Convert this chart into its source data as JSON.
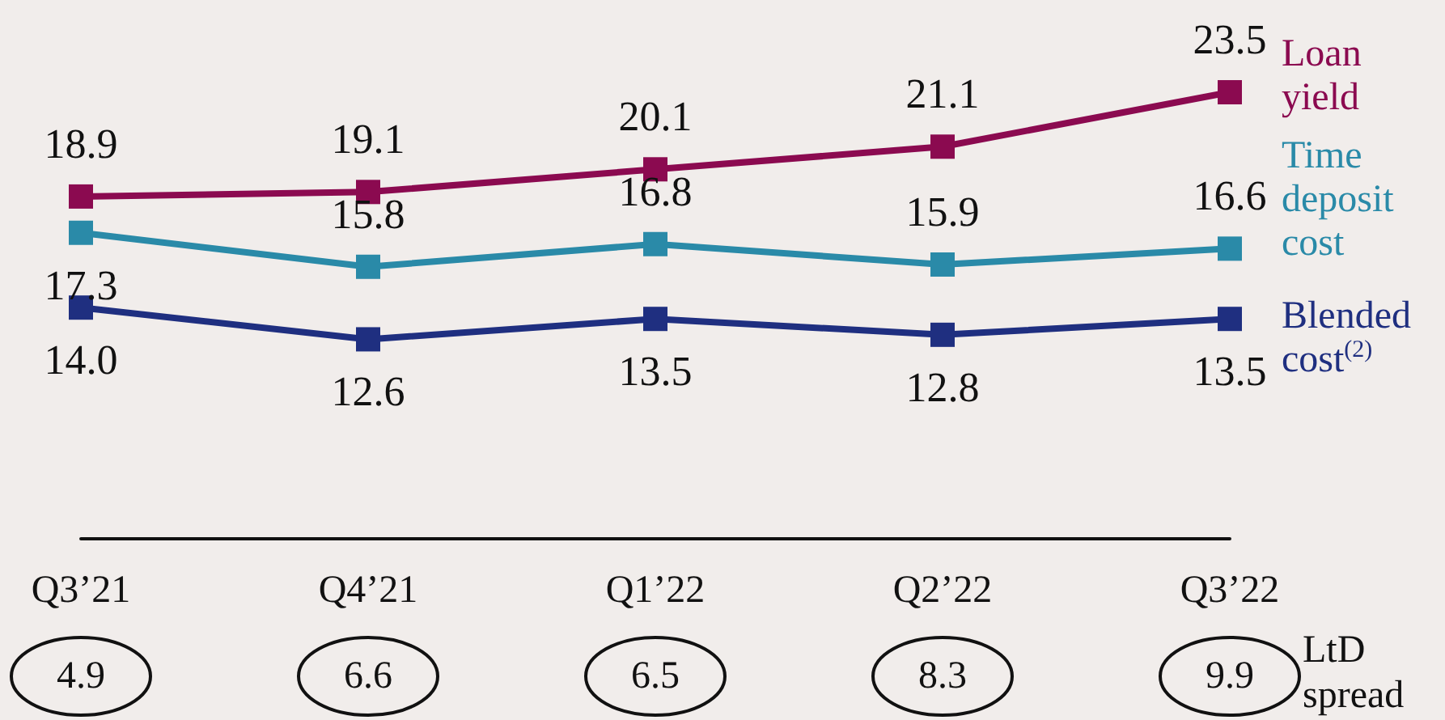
{
  "chart_data": {
    "type": "line",
    "categories": [
      "Q3’21",
      "Q4’21",
      "Q1’22",
      "Q2’22",
      "Q3’22"
    ],
    "series": [
      {
        "name": "Loan yield",
        "color": "#8b0a50",
        "values": [
          18.9,
          19.1,
          20.1,
          21.1,
          23.5
        ],
        "value_labels": [
          "18.9",
          "19.1",
          "20.1",
          "21.1",
          "23.5"
        ]
      },
      {
        "name": "Time deposit cost",
        "color": "#2a8aa8",
        "values": [
          17.3,
          15.8,
          16.8,
          15.9,
          16.6
        ],
        "value_labels": [
          "17.3",
          "15.8",
          "16.8",
          "15.9",
          "16.6"
        ]
      },
      {
        "name": "Blended cost$^{(2)}$",
        "color": "#1f2f80",
        "values": [
          14.0,
          12.6,
          13.5,
          12.8,
          13.5
        ],
        "value_labels": [
          "14.0",
          "12.6",
          "13.5",
          "12.8",
          "13.5"
        ]
      }
    ],
    "tick_labels": "x",
    "marker": "square",
    "line_style": "solid",
    "grid": false,
    "legend": false,
    "annotations": [
      "4.9",
      "6.6",
      "6.5",
      "8.3",
      "9.9",
      "LtD spread"
    ]
  }
}
